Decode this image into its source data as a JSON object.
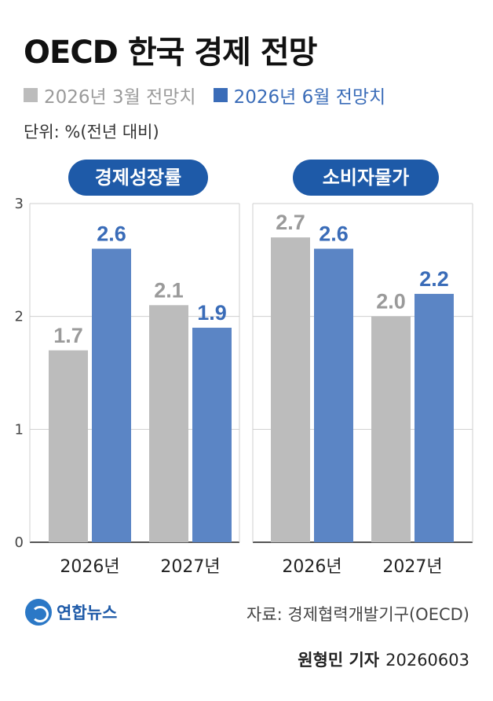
{
  "title": "OECD 한국 경제 전망",
  "unit": "단위: %(전년 대비)",
  "brand": "연합뉴스",
  "source": "자료: 경제협력개발기구(OECD)",
  "reporter": "원형민 기자",
  "date_code": "20260603",
  "colors": {
    "march": "#bcbcbc",
    "june": "#5b85c5",
    "pill": "#1e5aa8",
    "june_label": "#3a6cb8",
    "march_label": "#9a9a9a"
  },
  "chart_data": [
    {
      "type": "bar",
      "title": "경제성장률",
      "categories": [
        "2026년",
        "2027년"
      ],
      "series": [
        {
          "name": "2026년 3월 전망치",
          "values": [
            1.7,
            2.1
          ]
        },
        {
          "name": "2026년 6월 전망치",
          "values": [
            2.6,
            1.9
          ]
        }
      ],
      "ylim": [
        0,
        3
      ],
      "yticks": [
        "0",
        "1",
        "2",
        "3"
      ],
      "grid": true
    },
    {
      "type": "bar",
      "title": "소비자물가",
      "categories": [
        "2026년",
        "2027년"
      ],
      "series": [
        {
          "name": "2026년 3월 전망치",
          "values": [
            2.7,
            2.0
          ]
        },
        {
          "name": "2026년 6월 전망치",
          "values": [
            2.6,
            2.2
          ]
        }
      ],
      "ylim": [
        0,
        3
      ],
      "yticks": [
        "0",
        "1",
        "2",
        "3"
      ],
      "grid": true
    }
  ]
}
